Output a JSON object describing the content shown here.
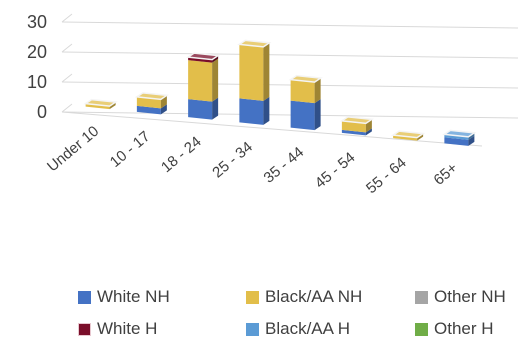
{
  "chart_data": {
    "type": "bar",
    "stacked": true,
    "three_d": true,
    "title": "",
    "xlabel": "",
    "ylabel": "",
    "ylim": [
      0,
      30
    ],
    "yticks": [
      0,
      10,
      20,
      30
    ],
    "grid": true,
    "legend_position": "bottom",
    "categories": [
      "Under 10",
      "10 - 17",
      "18 - 24",
      "25 - 34",
      "35 - 44",
      "45 - 54",
      "55 - 64",
      "65+"
    ],
    "series": [
      {
        "name": "White NH",
        "color": "#4472C4",
        "values": [
          0,
          2,
          6,
          8,
          9,
          1,
          0,
          2
        ]
      },
      {
        "name": "Black/AA NH",
        "color": "#E2BE4A",
        "values": [
          1,
          3,
          13,
          18,
          7,
          3,
          1,
          0
        ]
      },
      {
        "name": "Other NH",
        "color": "#A5A5A5",
        "values": [
          0,
          0,
          0,
          0,
          0,
          0,
          0,
          0
        ]
      },
      {
        "name": "White H",
        "color": "#7A0E2A",
        "values": [
          0,
          0,
          1,
          0,
          0,
          0,
          0,
          0
        ]
      },
      {
        "name": "Black/AA H",
        "color": "#5B9BD5",
        "values": [
          0,
          0,
          0,
          0,
          0,
          0,
          0,
          1
        ]
      },
      {
        "name": "Other H",
        "color": "#70AD47",
        "values": [
          0,
          0,
          0,
          0,
          0,
          0,
          0,
          0
        ]
      }
    ]
  }
}
